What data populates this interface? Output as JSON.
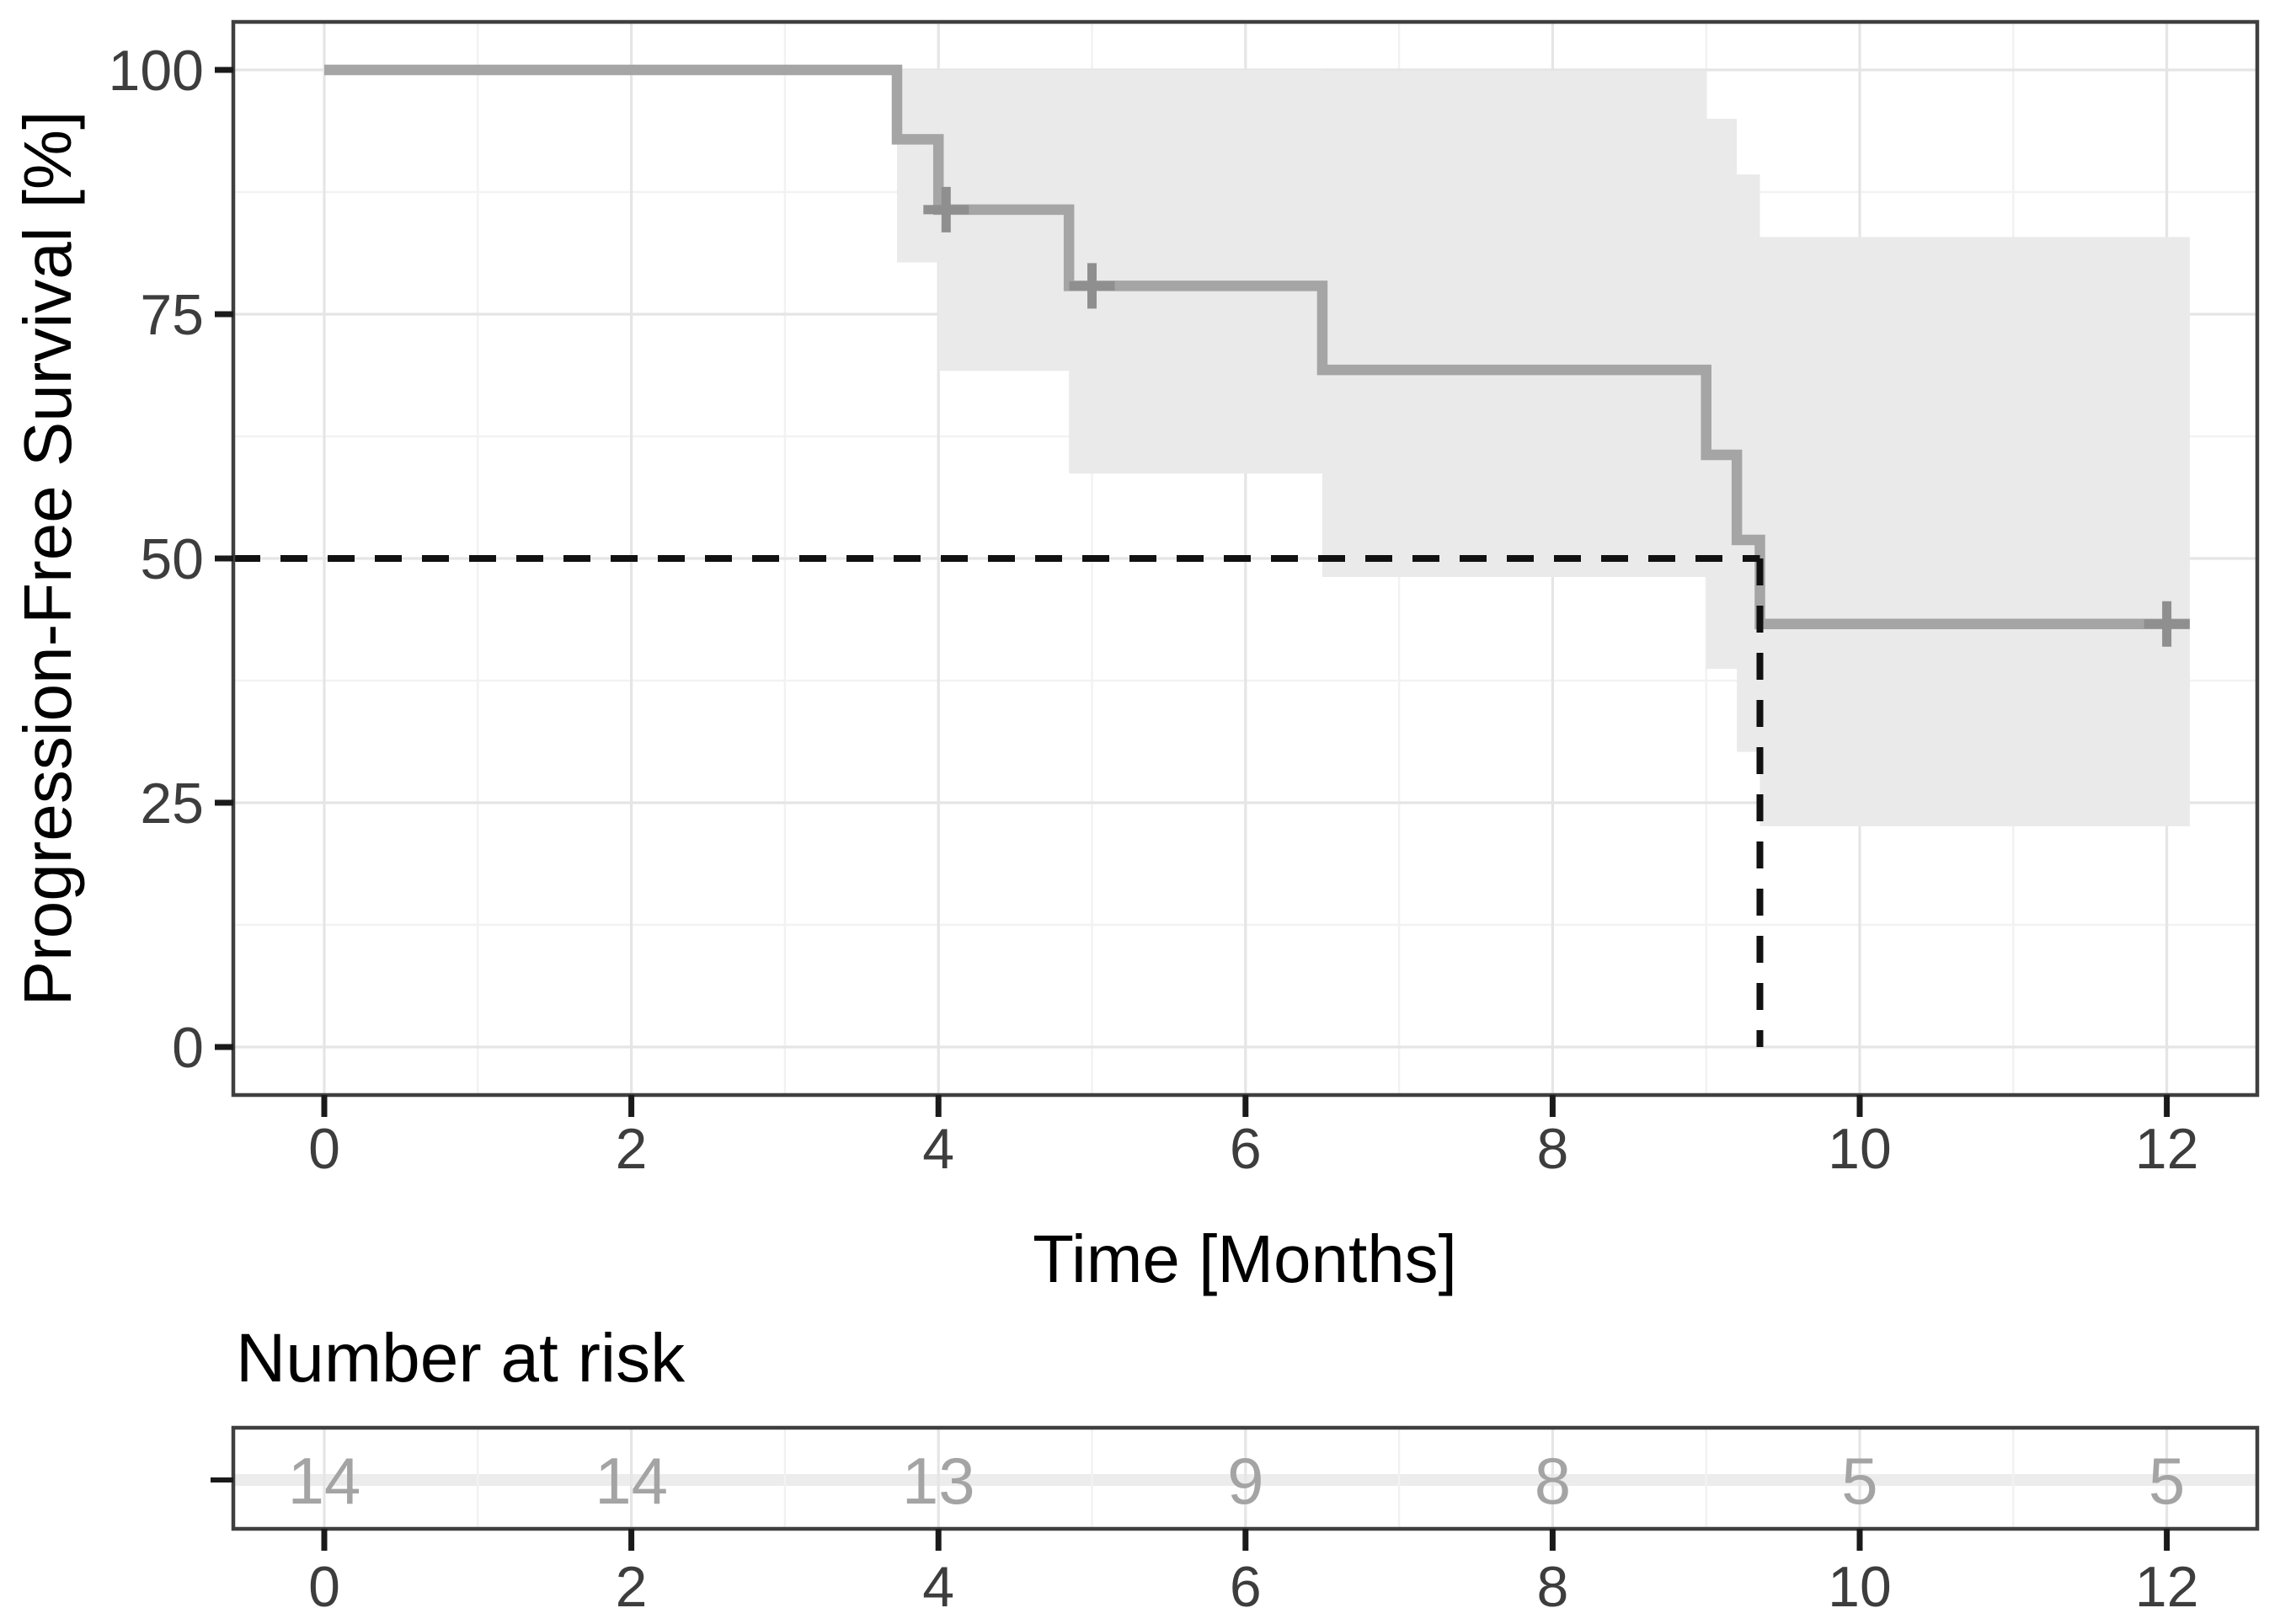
{
  "chart_data": {
    "type": "line",
    "subtype": "kaplan-meier-survival-step",
    "title": "",
    "xlabel": "Time [Months]",
    "ylabel": "Progression-Free Survival [%]",
    "xlim": [
      -0.6,
      12.6
    ],
    "ylim": [
      -5,
      105
    ],
    "x_ticks": [
      0,
      2,
      4,
      6,
      8,
      10,
      12
    ],
    "x_minor_ticks": [
      1,
      3,
      5,
      7,
      9,
      11
    ],
    "y_ticks": [
      100,
      75,
      50,
      25,
      0
    ],
    "y_minor_ticks": [
      87.5,
      62.5,
      37.5,
      12.5
    ],
    "grid": "on",
    "legend": "none",
    "series": [
      {
        "name": "Progression-Free Survival",
        "step": "post",
        "points": [
          [
            0,
            100
          ],
          [
            3.73,
            92.9
          ],
          [
            4.0,
            85.7
          ],
          [
            4.85,
            77.9
          ],
          [
            6.5,
            69.3
          ],
          [
            9.0,
            60.6
          ],
          [
            9.2,
            51.9
          ],
          [
            9.35,
            43.3
          ],
          [
            12.15,
            43.3
          ]
        ]
      }
    ],
    "censor_marks": [
      [
        4.05,
        85.7
      ],
      [
        5.0,
        77.9
      ],
      [
        12.0,
        43.3
      ]
    ],
    "confidence_band": [
      {
        "t_start": 3.73,
        "t_end": 4.0,
        "lower": 80.3,
        "upper": 100
      },
      {
        "t_start": 4.0,
        "t_end": 4.85,
        "lower": 69.2,
        "upper": 100
      },
      {
        "t_start": 4.85,
        "t_end": 6.5,
        "lower": 58.7,
        "upper": 100
      },
      {
        "t_start": 6.5,
        "t_end": 9.0,
        "lower": 48.1,
        "upper": 99.9
      },
      {
        "t_start": 9.0,
        "t_end": 9.2,
        "lower": 38.7,
        "upper": 95.0
      },
      {
        "t_start": 9.2,
        "t_end": 9.35,
        "lower": 30.2,
        "upper": 89.3
      },
      {
        "t_start": 9.35,
        "t_end": 12.15,
        "lower": 22.6,
        "upper": 82.9
      }
    ],
    "median_line": {
      "time": 9.35,
      "survival": 50
    }
  },
  "risk_table": {
    "title": "Number at risk",
    "times": [
      0,
      2,
      4,
      6,
      8,
      10,
      12
    ],
    "at_risk": [
      14,
      14,
      13,
      9,
      8,
      5,
      5
    ]
  },
  "colors": {
    "curve": "#a5a5a5",
    "censor": "#8f8f8f",
    "confidence_band": "#eaeaea",
    "median_dash": "#111111",
    "grid_major": "#e5e5e5",
    "grid_minor": "#f2f2f2",
    "panel_border": "#3f3f3f",
    "tick_mark": "#1a1a1a",
    "tick_label": "#3d3d3d",
    "axis_title": "#000000",
    "risk_count": "#a4a4a4",
    "risk_strata_band": "#ececec",
    "background": "#ffffff"
  }
}
